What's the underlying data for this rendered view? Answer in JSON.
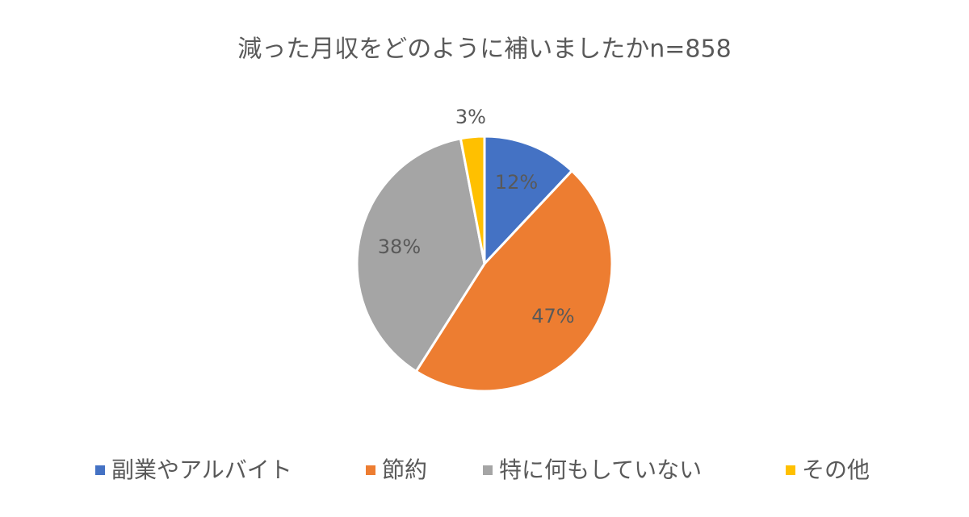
{
  "chart_data": {
    "type": "pie",
    "title": "減った月収をどのように補いましたかn=858",
    "categories": [
      "副業やアルバイト",
      "節約",
      "特に何もしていない",
      "その他"
    ],
    "values": [
      12,
      47,
      38,
      3
    ],
    "value_labels": [
      "12%",
      "47%",
      "38%",
      "3%"
    ],
    "colors": [
      "#4472c4",
      "#ed7d31",
      "#a5a5a5",
      "#ffc000"
    ],
    "legend": "bottom"
  }
}
